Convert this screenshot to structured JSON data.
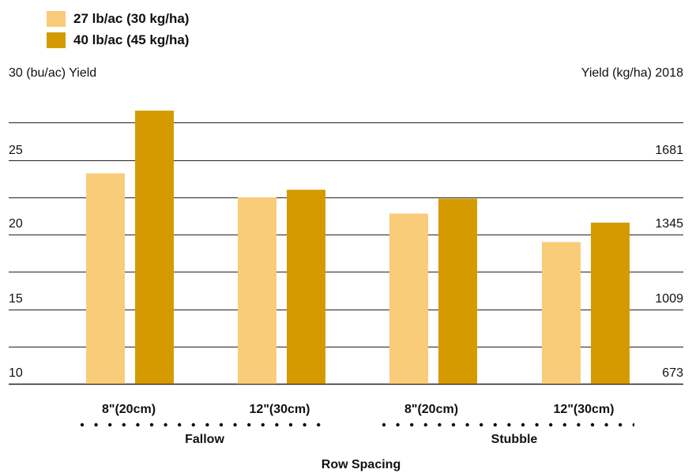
{
  "chart_data": {
    "type": "bar",
    "year": "2018",
    "left_axis_label": "30 (bu/ac) Yield",
    "right_axis_label": "Yield (kg/ha) 2018",
    "xlabel": "Row Spacing",
    "ylim": [
      10,
      30
    ],
    "left_ticks": [
      "25",
      "20",
      "15",
      "10"
    ],
    "right_ticks": [
      "1681",
      "1345",
      "1009",
      "673"
    ],
    "categories": [
      "8\"(20cm)",
      "12\"(30cm)",
      "8\"(20cm)",
      "12\"(30cm)"
    ],
    "groups": [
      "Fallow",
      "Stubble"
    ],
    "series": [
      {
        "name": "27 lb/ac (30 kg/ha)",
        "color": "#F8CC78",
        "values": [
          24.1,
          22.5,
          21.4,
          19.5
        ]
      },
      {
        "name": "40 lb/ac (45 kg/ha)",
        "color": "#D49A00",
        "values": [
          28.3,
          23.0,
          22.4,
          20.8
        ]
      }
    ],
    "grid": true,
    "legend_position": "top-left"
  }
}
